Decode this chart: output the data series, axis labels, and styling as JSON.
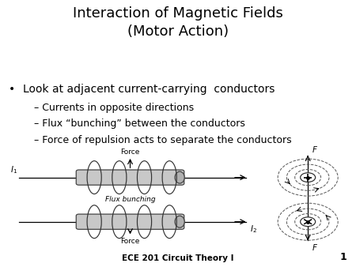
{
  "title": "Interaction of Magnetic Fields\n(Motor Action)",
  "title_fontsize": 13,
  "bullet": "Look at adjacent current-carrying  conductors",
  "sub_bullets": [
    "– Currents in opposite directions",
    "– Flux “bunching” between the conductors",
    "– Force of repulsion acts to separate the conductors"
  ],
  "footer": "ECE 201 Circuit Theory I",
  "slide_number": "1",
  "bg_color": "#ffffff",
  "diagram_bg": "#dcdcdc",
  "text_color": "#000000",
  "bullet_fontsize": 10,
  "sub_fontsize": 9,
  "footer_fontsize": 7.5
}
